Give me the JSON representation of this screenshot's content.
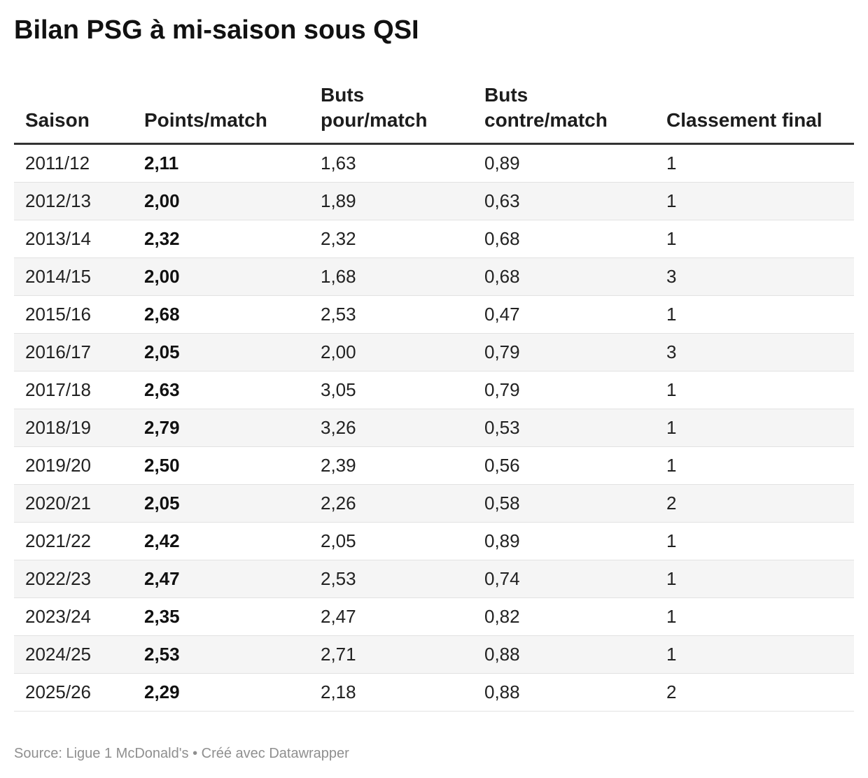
{
  "header": {
    "title": "Bilan PSG à mi-saison sous QSI"
  },
  "table": {
    "columns": [
      "Saison",
      "Points/match",
      "Buts pour/match",
      "Buts contre/match",
      "Classement final"
    ],
    "rows": [
      [
        "2011/12",
        "2,11",
        "1,63",
        "0,89",
        "1"
      ],
      [
        "2012/13",
        "2,00",
        "1,89",
        "0,63",
        "1"
      ],
      [
        "2013/14",
        "2,32",
        "2,32",
        "0,68",
        "1"
      ],
      [
        "2014/15",
        "2,00",
        "1,68",
        "0,68",
        "3"
      ],
      [
        "2015/16",
        "2,68",
        "2,53",
        "0,47",
        "1"
      ],
      [
        "2016/17",
        "2,05",
        "2,00",
        "0,79",
        "3"
      ],
      [
        "2017/18",
        "2,63",
        "3,05",
        "0,79",
        "1"
      ],
      [
        "2018/19",
        "2,79",
        "3,26",
        "0,53",
        "1"
      ],
      [
        "2019/20",
        "2,50",
        "2,39",
        "0,56",
        "1"
      ],
      [
        "2020/21",
        "2,05",
        "2,26",
        "0,58",
        "2"
      ],
      [
        "2021/22",
        "2,42",
        "2,05",
        "0,89",
        "1"
      ],
      [
        "2022/23",
        "2,47",
        "2,53",
        "0,74",
        "1"
      ],
      [
        "2023/24",
        "2,35",
        "2,47",
        "0,82",
        "1"
      ],
      [
        "2024/25",
        "2,53",
        "2,71",
        "0,88",
        "1"
      ],
      [
        "2025/26",
        "2,29",
        "2,18",
        "0,88",
        "2"
      ]
    ]
  },
  "footer": {
    "source": "Source: Ligue 1 McDonald's • Créé avec Datawrapper"
  }
}
